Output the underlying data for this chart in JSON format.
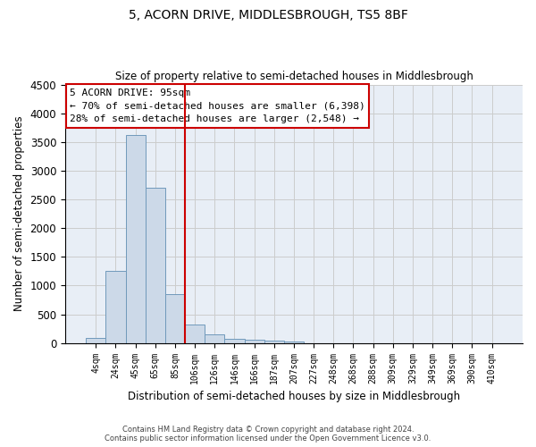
{
  "title": "5, ACORN DRIVE, MIDDLESBROUGH, TS5 8BF",
  "subtitle": "Size of property relative to semi-detached houses in Middlesbrough",
  "xlabel": "Distribution of semi-detached houses by size in Middlesbrough",
  "ylabel": "Number of semi-detached properties",
  "bar_color": "#ccd9e8",
  "bar_edge_color": "#7099bb",
  "vline_color": "#cc0000",
  "annotation_box_color": "#cc0000",
  "annotation_text": "5 ACORN DRIVE: 95sqm\n← 70% of semi-detached houses are smaller (6,398)\n28% of semi-detached houses are larger (2,548) →",
  "property_bin_index": 4,
  "categories": [
    "4sqm",
    "24sqm",
    "45sqm",
    "65sqm",
    "85sqm",
    "106sqm",
    "126sqm",
    "146sqm",
    "166sqm",
    "187sqm",
    "207sqm",
    "227sqm",
    "248sqm",
    "268sqm",
    "288sqm",
    "309sqm",
    "329sqm",
    "349sqm",
    "369sqm",
    "390sqm",
    "410sqm"
  ],
  "values": [
    85,
    1250,
    3620,
    2700,
    850,
    320,
    155,
    80,
    60,
    40,
    30,
    0,
    0,
    0,
    0,
    0,
    0,
    0,
    0,
    0,
    0
  ],
  "ylim": [
    0,
    4500
  ],
  "yticks": [
    0,
    500,
    1000,
    1500,
    2000,
    2500,
    3000,
    3500,
    4000,
    4500
  ],
  "background_color": "#ffffff",
  "ax_background_color": "#e8eef6",
  "grid_color": "#cccccc",
  "footer_line1": "Contains HM Land Registry data © Crown copyright and database right 2024.",
  "footer_line2": "Contains public sector information licensed under the Open Government Licence v3.0."
}
